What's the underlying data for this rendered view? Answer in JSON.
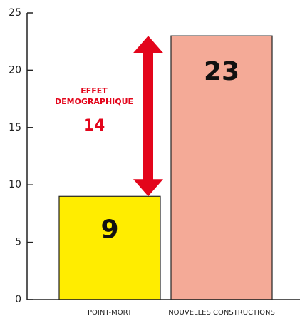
{
  "chart_data": {
    "type": "bar",
    "categories": [
      "POINT-MORT",
      "NOUVELLES CONSTRUCTIONS"
    ],
    "values": [
      9,
      23
    ],
    "colors": [
      "#ffed00",
      "#f4aa97"
    ],
    "ylim": [
      0,
      25
    ],
    "yticks": [
      0,
      5,
      10,
      15,
      20,
      25
    ],
    "annotation": [
      "EFFET",
      "DEMOGRAPHIQUE"
    ],
    "annotation_value": 14,
    "annotation_color": "#e3051b"
  }
}
